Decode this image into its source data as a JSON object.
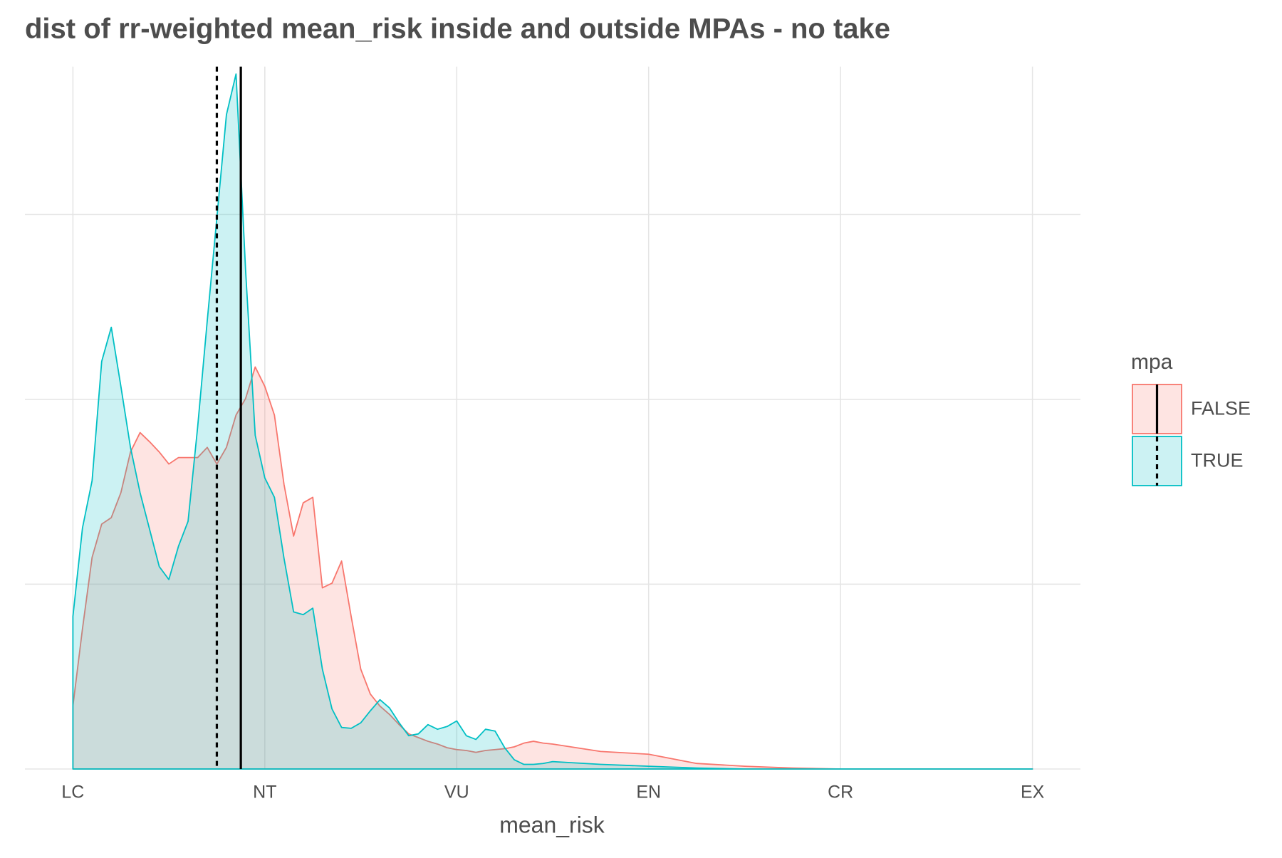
{
  "chart_data": {
    "type": "density",
    "title": "dist of rr-weighted mean_risk inside and outside MPAs - no take",
    "xlabel": "mean_risk",
    "legend_title": "mpa",
    "legend_position": "right",
    "grid": true,
    "ytick_labels": false,
    "xlim": [
      -0.05,
      1.05
    ],
    "ylim": [
      0,
      7.6
    ],
    "xticks": [
      {
        "value": 0,
        "label": "LC"
      },
      {
        "value": 0.2,
        "label": "NT"
      },
      {
        "value": 0.4,
        "label": "VU"
      },
      {
        "value": 0.6,
        "label": "EN"
      },
      {
        "value": 0.8,
        "label": "CR"
      },
      {
        "value": 1,
        "label": "EX"
      }
    ],
    "yticks": [
      0,
      2,
      4,
      6
    ],
    "x": [
      0,
      0.01,
      0.02,
      0.03,
      0.04,
      0.05,
      0.06,
      0.07,
      0.08,
      0.09,
      0.1,
      0.11,
      0.12,
      0.13,
      0.14,
      0.15,
      0.16,
      0.17,
      0.18,
      0.19,
      0.2,
      0.21,
      0.22,
      0.23,
      0.24,
      0.25,
      0.26,
      0.27,
      0.28,
      0.29,
      0.3,
      0.31,
      0.32,
      0.33,
      0.34,
      0.35,
      0.36,
      0.37,
      0.38,
      0.39,
      0.4,
      0.41,
      0.42,
      0.43,
      0.44,
      0.45,
      0.46,
      0.47,
      0.48,
      0.49,
      0.5,
      0.55,
      0.6,
      0.65,
      0.7,
      0.75,
      0.8,
      0.85,
      0.9,
      0.95,
      1
    ],
    "series": [
      {
        "name": "FALSE",
        "color": "#F8766D",
        "mean": 0.175,
        "linestyle": "solid",
        "values": [
          0.68,
          1.52,
          2.29,
          2.65,
          2.72,
          2.99,
          3.43,
          3.64,
          3.54,
          3.43,
          3.3,
          3.37,
          3.37,
          3.37,
          3.48,
          3.3,
          3.48,
          3.83,
          4.01,
          4.35,
          4.14,
          3.83,
          3.08,
          2.52,
          2.88,
          2.94,
          1.96,
          2.01,
          2.25,
          1.65,
          1.08,
          0.81,
          0.68,
          0.59,
          0.48,
          0.38,
          0.34,
          0.3,
          0.27,
          0.23,
          0.21,
          0.2,
          0.18,
          0.2,
          0.21,
          0.22,
          0.24,
          0.28,
          0.3,
          0.28,
          0.27,
          0.19,
          0.16,
          0.06,
          0.03,
          0.01,
          0,
          0,
          0,
          0,
          0
        ]
      },
      {
        "name": "TRUE",
        "color": "#00BFC4",
        "mean": 0.15,
        "linestyle": "dashed",
        "values": [
          1.65,
          2.61,
          3.12,
          4.41,
          4.78,
          4.14,
          3.48,
          2.99,
          2.59,
          2.19,
          2.05,
          2.41,
          2.68,
          3.7,
          4.85,
          5.96,
          7.08,
          7.52,
          5.39,
          3.61,
          3.15,
          2.94,
          2.28,
          1.7,
          1.67,
          1.74,
          1.08,
          0.65,
          0.45,
          0.44,
          0.5,
          0.63,
          0.75,
          0.66,
          0.5,
          0.36,
          0.38,
          0.48,
          0.43,
          0.46,
          0.52,
          0.36,
          0.32,
          0.43,
          0.41,
          0.23,
          0.1,
          0.05,
          0.05,
          0.06,
          0.08,
          0.05,
          0.03,
          0.01,
          0,
          0,
          0,
          0,
          0,
          0,
          0
        ]
      }
    ]
  }
}
